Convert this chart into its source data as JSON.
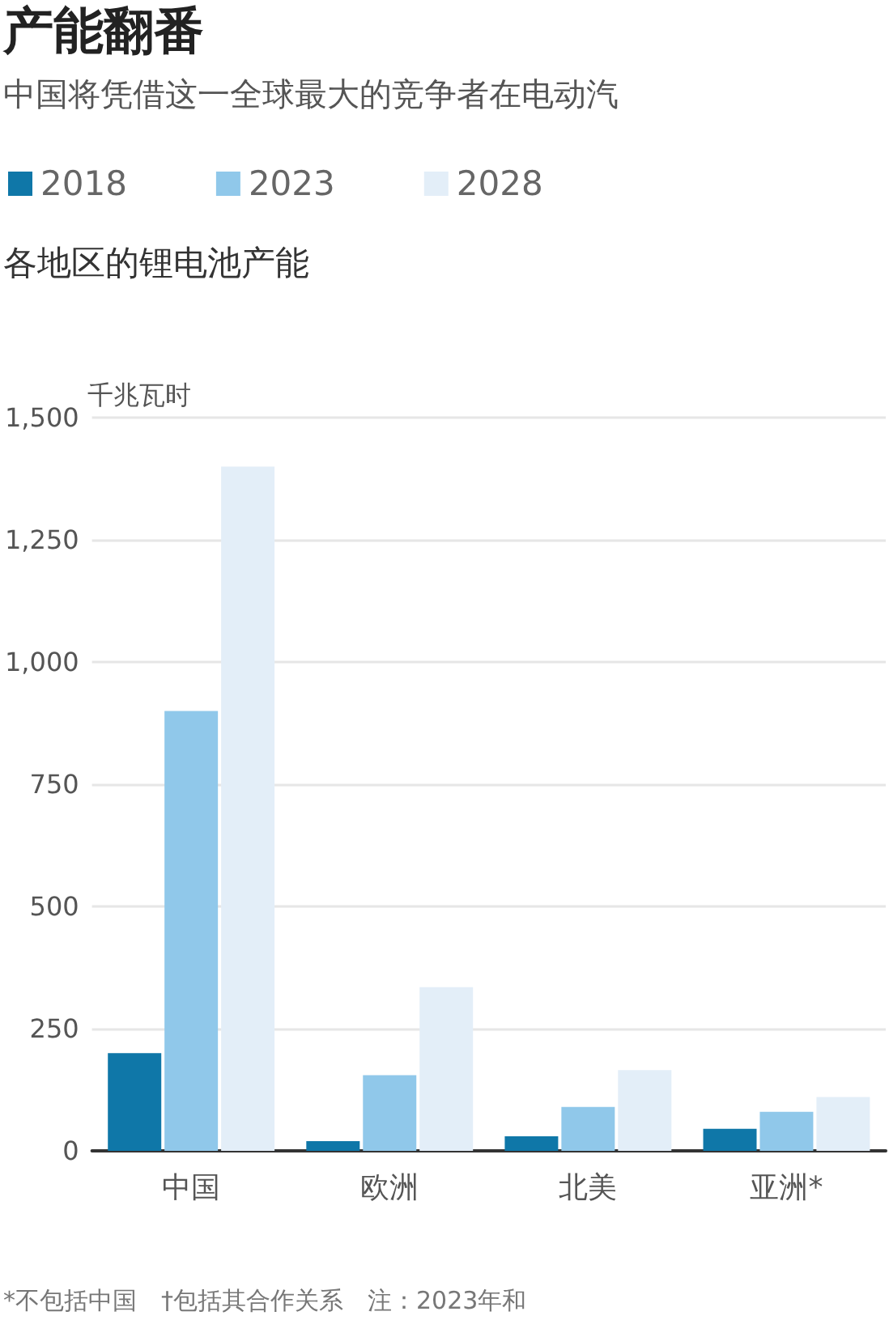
{
  "chart_data": {
    "type": "bar",
    "title": "产能翻番",
    "subtitle": "中国将凭借这一全球最大的竞争者在电动汽",
    "ylabel": "千兆瓦时",
    "annotations": [
      "各地区的锂电池产能",
      "*不包括中国　†包括其合作关系　注：2023年和"
    ],
    "categories": [
      "中国",
      "欧洲",
      "北美",
      "亚洲*"
    ],
    "series": [
      {
        "name": "2018",
        "color": "#0f77a8",
        "values": [
          200,
          20,
          30,
          45
        ]
      },
      {
        "name": "2023",
        "color": "#90c8ea",
        "values": [
          900,
          155,
          90,
          80
        ]
      },
      {
        "name": "2028",
        "color": "#e3eef8",
        "values": [
          1400,
          335,
          165,
          110
        ]
      }
    ],
    "ylim": [
      0,
      1500
    ],
    "yticks": [
      0,
      250,
      500,
      750,
      {
        "value": 1000,
        "label": "1,000"
      },
      {
        "value": 1250,
        "label": "1,250"
      },
      {
        "value": 1500,
        "label": "1,500"
      }
    ],
    "grid": "y",
    "legend": "top left"
  }
}
